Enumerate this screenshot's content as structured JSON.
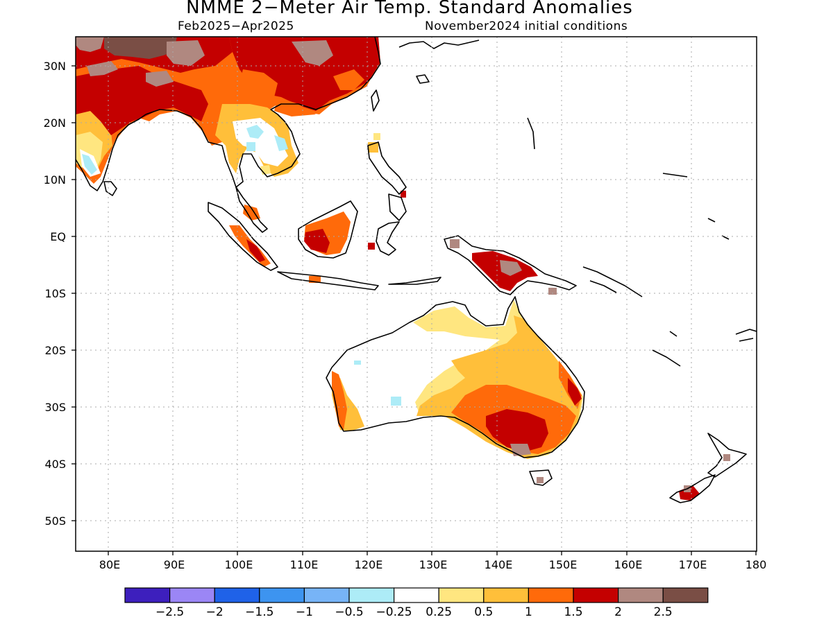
{
  "title": "NMME 2−Meter Air Temp. Standard Anomalies",
  "subtitle_left": "Feb2025−Apr2025",
  "subtitle_right": "November2024 initial conditions",
  "lat_labels": [
    "30N",
    "20N",
    "10N",
    "EQ",
    "10S",
    "20S",
    "30S",
    "40S",
    "50S"
  ],
  "lon_labels": [
    "80E",
    "90E",
    "100E",
    "110E",
    "120E",
    "130E",
    "140E",
    "150E",
    "160E",
    "170E",
    "180"
  ],
  "colorbar": {
    "colors": [
      "#3d1fbd",
      "#9b86f5",
      "#1f62e8",
      "#3d94f0",
      "#77b4f7",
      "#adecf7",
      "#ffffff",
      "#ffe680",
      "#ffbf3a",
      "#ff6a0a",
      "#c40000",
      "#b08880",
      "#7a4e45"
    ],
    "labels": [
      "−2.5",
      "−2",
      "−1.5",
      "−1",
      "−0.5",
      "−0.25",
      "0.25",
      "0.5",
      "1",
      "1.5",
      "2",
      "2.5"
    ]
  },
  "legend_colors": {
    "ocean": "#ffffff",
    "coast": "#000000",
    "grid": "#aaaaaa"
  }
}
